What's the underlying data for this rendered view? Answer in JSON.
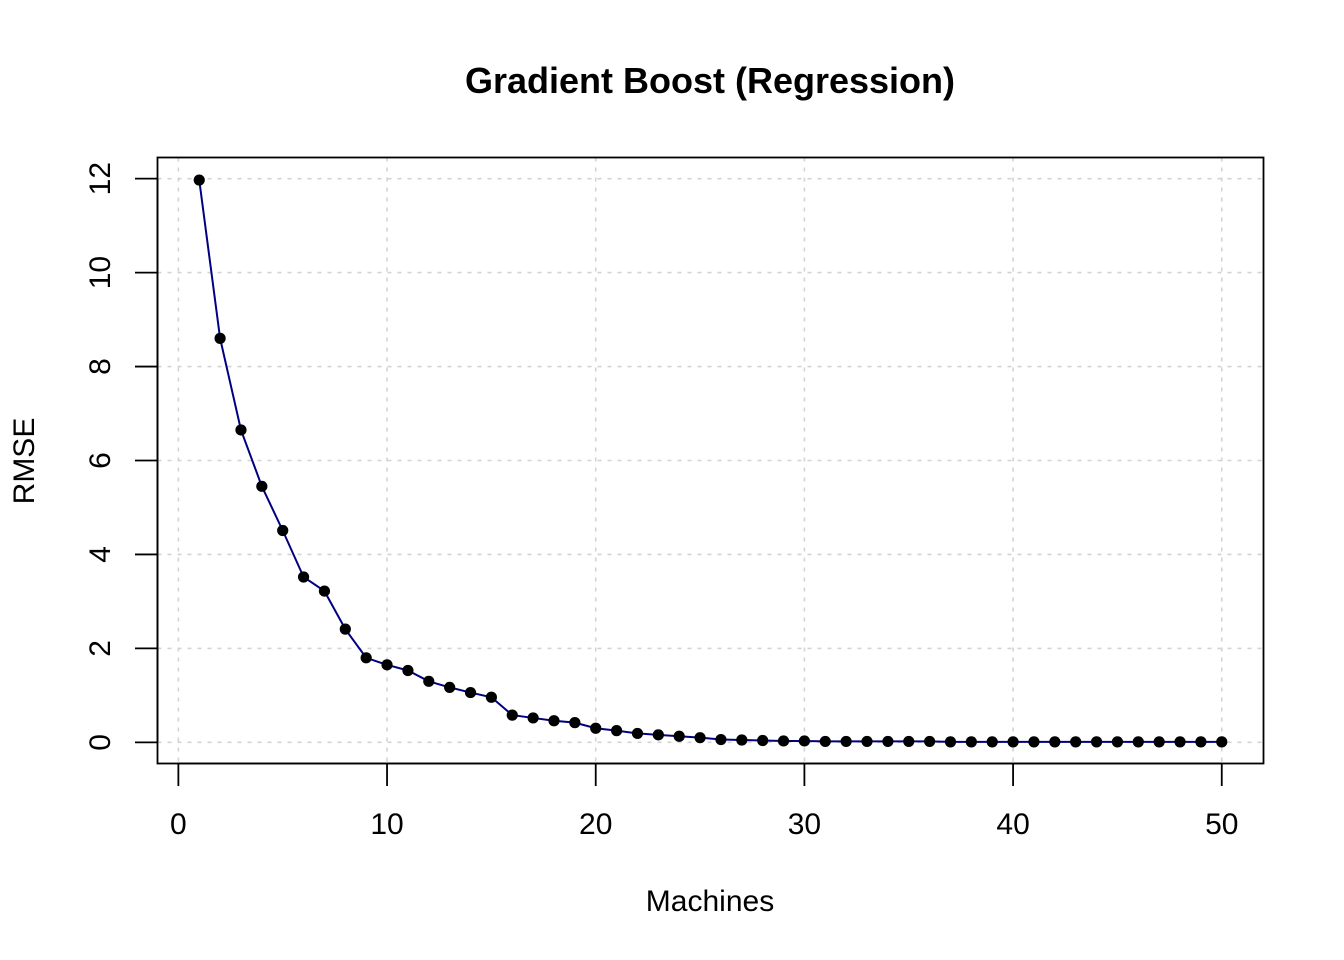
{
  "chart_data": {
    "type": "line",
    "title": "Gradient Boost (Regression)",
    "xlabel": "Machines",
    "ylabel": "RMSE",
    "xlim": [
      -1,
      52
    ],
    "ylim": [
      -0.45,
      12.45
    ],
    "x_ticks": [
      0,
      10,
      20,
      30,
      40,
      50
    ],
    "y_ticks": [
      0,
      2,
      4,
      6,
      8,
      10,
      12
    ],
    "grid": true,
    "line_color": "#000080",
    "point_color": "#000000",
    "series": [
      {
        "x": [
          1,
          2,
          3,
          4,
          5,
          6,
          7,
          8,
          9,
          10,
          11,
          12,
          13,
          14,
          15,
          16,
          17,
          18,
          19,
          20,
          21,
          22,
          23,
          24,
          25,
          26,
          27,
          28,
          29,
          30,
          31,
          32,
          33,
          34,
          35,
          36,
          37,
          38,
          39,
          40,
          41,
          42,
          43,
          44,
          45,
          46,
          47,
          48,
          49,
          50
        ],
        "values": [
          11.97,
          8.6,
          6.65,
          5.45,
          4.51,
          3.52,
          3.22,
          2.41,
          1.8,
          1.65,
          1.53,
          1.3,
          1.17,
          1.06,
          0.96,
          0.58,
          0.52,
          0.46,
          0.42,
          0.3,
          0.25,
          0.19,
          0.16,
          0.13,
          0.1,
          0.06,
          0.05,
          0.04,
          0.03,
          0.03,
          0.02,
          0.02,
          0.02,
          0.02,
          0.02,
          0.02,
          0.01,
          0.01,
          0.01,
          0.01,
          0.01,
          0.01,
          0.01,
          0.01,
          0.01,
          0.01,
          0.01,
          0.01,
          0.01,
          0.01
        ]
      }
    ]
  }
}
